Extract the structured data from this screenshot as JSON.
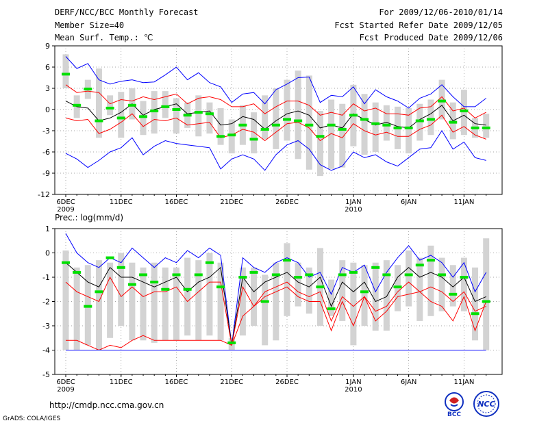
{
  "header": {
    "title": "DERF/NCC/BCC Monthly Forecast",
    "member_size": "Member Size=40",
    "variable": "Mean Surf. Temp.: ℃",
    "period": "For 2009/12/06-2010/01/14",
    "start_date": "Fcst Started Refer Date 2009/12/05",
    "produced_date": "Fcst Produced Date 2009/12/06"
  },
  "footer": {
    "url": "http://cmdp.ncc.cma.gov.cn",
    "credit": "GrADS: COLA/IGES",
    "logo_bcc": "BCC",
    "logo_ncc": "NCC"
  },
  "colors": {
    "box": "#d3d3d3",
    "median": "#00e000",
    "ensemble_mean": "#000000",
    "range": "#0000ff",
    "spread": "#ff0000",
    "grid": "#888888"
  },
  "chart_data": [
    {
      "type": "line",
      "title": "",
      "ylabel": "Mean Surf. Temp.: ℃",
      "ylim": [
        -12,
        9
      ],
      "yticks": [
        9,
        6,
        3,
        0,
        -3,
        -6,
        -9,
        -12
      ],
      "grid": true,
      "x_tick_labels": [
        {
          "day": 0,
          "label": "6DEC",
          "sub": "2009"
        },
        {
          "day": 5,
          "label": "11DEC",
          "sub": ""
        },
        {
          "day": 10,
          "label": "16DEC",
          "sub": ""
        },
        {
          "day": 15,
          "label": "21DEC",
          "sub": ""
        },
        {
          "day": 20,
          "label": "26DEC",
          "sub": ""
        },
        {
          "day": 26,
          "label": "1JAN",
          "sub": "2010"
        },
        {
          "day": 31,
          "label": "6JAN",
          "sub": ""
        },
        {
          "day": 36,
          "label": "11JAN",
          "sub": ""
        }
      ],
      "days": 39,
      "series": [
        {
          "name": "max",
          "values": [
            7.5,
            5.8,
            6.5,
            4.2,
            3.6,
            4.0,
            4.2,
            3.8,
            3.9,
            4.9,
            6.0,
            4.2,
            5.2,
            3.8,
            3.2,
            1.0,
            2.2,
            2.4,
            0.8,
            2.8,
            3.6,
            4.5,
            4.6,
            1.0,
            2.0,
            1.8,
            3.2,
            0.8,
            2.8,
            1.8,
            1.2,
            0.2,
            1.6,
            2.2,
            3.5,
            1.8,
            0.4,
            0.4,
            1.6
          ]
        },
        {
          "name": "p75",
          "values": [
            3.5,
            2.4,
            2.6,
            2.4,
            0.8,
            1.4,
            1.2,
            1.8,
            1.4,
            1.8,
            2.2,
            0.8,
            1.6,
            1.8,
            1.4,
            0.4,
            0.4,
            0.8,
            -0.6,
            0.4,
            1.2,
            1.2,
            0.6,
            -0.8,
            -0.4,
            -0.8,
            0.8,
            -0.2,
            0.2,
            -0.6,
            -0.6,
            -0.8,
            0.2,
            0.4,
            1.8,
            -0.2,
            0.2,
            -1.2,
            -0.4
          ]
        },
        {
          "name": "mean",
          "values": [
            1.2,
            0.4,
            0.2,
            -1.6,
            -1.2,
            -0.4,
            0.8,
            -0.8,
            0.0,
            0.4,
            0.8,
            -0.6,
            -0.4,
            -0.2,
            -2.2,
            -2.0,
            -1.0,
            -1.4,
            -2.8,
            -1.6,
            -0.6,
            -0.2,
            -0.8,
            -2.6,
            -2.2,
            -2.6,
            -0.6,
            -1.4,
            -2.2,
            -1.8,
            -2.4,
            -2.6,
            -1.4,
            -0.6,
            0.6,
            -1.6,
            -0.8,
            -2.0,
            -2.2
          ]
        },
        {
          "name": "p25",
          "values": [
            -1.2,
            -1.6,
            -1.4,
            -3.4,
            -2.8,
            -1.8,
            -0.6,
            -2.4,
            -1.4,
            -1.6,
            -1.2,
            -2.2,
            -2.0,
            -1.8,
            -4.0,
            -3.6,
            -2.8,
            -3.2,
            -4.4,
            -3.2,
            -2.0,
            -1.8,
            -2.6,
            -4.4,
            -3.4,
            -4.0,
            -2.0,
            -3.0,
            -3.6,
            -3.2,
            -3.8,
            -3.8,
            -2.8,
            -2.2,
            -0.8,
            -3.2,
            -2.4,
            -3.6,
            -4.2
          ]
        },
        {
          "name": "min",
          "values": [
            -6.2,
            -7.0,
            -8.2,
            -7.2,
            -6.0,
            -5.4,
            -4.0,
            -6.4,
            -5.2,
            -4.4,
            -4.8,
            -5.0,
            -5.2,
            -5.4,
            -8.4,
            -7.0,
            -6.4,
            -7.0,
            -8.6,
            -6.4,
            -5.0,
            -4.4,
            -5.6,
            -7.8,
            -8.6,
            -8.0,
            -6.0,
            -6.8,
            -6.4,
            -7.4,
            -8.0,
            -6.8,
            -5.6,
            -5.4,
            -3.0,
            -5.6,
            -4.6,
            -6.8,
            -7.2
          ]
        },
        {
          "name": "median",
          "values": [
            5.0,
            0.6,
            2.9,
            -1.6,
            0.2,
            -1.2,
            0.6,
            -1.0,
            -0.2,
            0.4,
            0.0,
            -0.8,
            -0.4,
            -0.6,
            -3.8,
            -3.6,
            -2.2,
            -4.2,
            -2.8,
            -2.2,
            -1.4,
            -1.6,
            -2.2,
            -3.8,
            -2.2,
            -2.8,
            -0.8,
            -1.4,
            -2.0,
            -2.2,
            -2.6,
            -2.6,
            -1.6,
            -1.4,
            1.2,
            -1.8,
            -0.2,
            -2.6,
            -2.6
          ]
        }
      ],
      "boxes_lo": [
        3.0,
        -1.2,
        1.5,
        -4.0,
        -0.8,
        -4.0,
        -1.4,
        -3.6,
        -3.4,
        -1.2,
        -3.4,
        -2.6,
        -3.8,
        -3.4,
        -5.0,
        -6.2,
        -5.0,
        -6.2,
        -4.2,
        -5.6,
        -4.4,
        -7.0,
        -8.5,
        -9.4,
        -8.4,
        -8.2,
        -5.2,
        -6.4,
        -6.0,
        -4.4,
        -5.6,
        -6.2,
        -4.4,
        -3.6,
        -1.4,
        -4.2,
        -3.6,
        -4.0,
        -4.0
      ],
      "boxes_hi": [
        7.8,
        2.0,
        4.2,
        5.8,
        2.0,
        2.5,
        3.0,
        1.2,
        2.6,
        2.6,
        1.6,
        1.0,
        2.0,
        1.0,
        0.2,
        -1.4,
        0.6,
        -0.4,
        2.0,
        3.0,
        4.2,
        5.5,
        4.8,
        -0.2,
        1.4,
        0.8,
        3.5,
        2.2,
        1.0,
        0.6,
        0.4,
        0.2,
        0.8,
        1.4,
        4.2,
        1.0,
        2.8,
        -1.2,
        -0.6
      ]
    },
    {
      "type": "line",
      "title": "Prec.: log(mm/d)",
      "ylabel": "Prec.: log(mm/d)",
      "ylim": [
        -5,
        1
      ],
      "yticks": [
        1,
        0,
        -1,
        -2,
        -3,
        -4,
        -5
      ],
      "grid": true,
      "x_tick_labels": [
        {
          "day": 0,
          "label": "6DEC",
          "sub": "2009"
        },
        {
          "day": 5,
          "label": "11DEC",
          "sub": ""
        },
        {
          "day": 10,
          "label": "16DEC",
          "sub": ""
        },
        {
          "day": 15,
          "label": "21DEC",
          "sub": ""
        },
        {
          "day": 20,
          "label": "26DEC",
          "sub": ""
        },
        {
          "day": 26,
          "label": "1JAN",
          "sub": "2010"
        },
        {
          "day": 31,
          "label": "6JAN",
          "sub": ""
        },
        {
          "day": 36,
          "label": "11JAN",
          "sub": ""
        }
      ],
      "days": 39,
      "series": [
        {
          "name": "max",
          "values": [
            0.8,
            0.0,
            -0.4,
            -0.6,
            -0.2,
            -0.4,
            0.2,
            -0.2,
            -0.6,
            -0.2,
            -0.4,
            0.1,
            -0.2,
            0.2,
            -0.1,
            -3.8,
            -0.2,
            -0.6,
            -0.8,
            -0.4,
            -0.2,
            -0.4,
            -1.0,
            -0.8,
            -1.7,
            -0.6,
            -0.8,
            -0.5,
            -1.6,
            -0.8,
            -0.2,
            0.3,
            -0.3,
            -0.1,
            -0.4,
            -1.0,
            -0.4,
            -1.6,
            -0.8
          ]
        },
        {
          "name": "mean",
          "values": [
            -0.4,
            -0.8,
            -1.2,
            -1.4,
            -0.6,
            -1.0,
            -1.0,
            -1.2,
            -1.4,
            -1.2,
            -1.0,
            -1.6,
            -1.2,
            -1.0,
            -0.6,
            -3.8,
            -1.0,
            -1.6,
            -1.2,
            -1.0,
            -0.8,
            -1.2,
            -1.4,
            -1.0,
            -2.2,
            -1.2,
            -1.6,
            -1.2,
            -2.0,
            -1.8,
            -1.0,
            -0.6,
            -1.0,
            -0.8,
            -1.0,
            -1.4,
            -1.0,
            -2.0,
            -1.8
          ]
        },
        {
          "name": "p75",
          "values": [
            -1.2,
            -1.6,
            -1.8,
            -2.0,
            -1.0,
            -1.8,
            -1.4,
            -1.8,
            -1.6,
            -1.6,
            -1.4,
            -2.0,
            -1.6,
            -1.2,
            -1.2,
            -3.8,
            -1.4,
            -2.2,
            -1.6,
            -1.4,
            -1.2,
            -1.6,
            -1.8,
            -1.6,
            -2.8,
            -1.8,
            -2.2,
            -1.8,
            -2.4,
            -2.2,
            -1.6,
            -1.2,
            -1.6,
            -1.4,
            -1.6,
            -2.0,
            -1.6,
            -2.4,
            -2.2
          ]
        },
        {
          "name": "p25",
          "values": [
            -3.6,
            -3.6,
            -3.8,
            -4.0,
            -3.8,
            -3.9,
            -3.6,
            -3.4,
            -3.6,
            -3.6,
            -3.6,
            -3.6,
            -3.6,
            -3.6,
            -3.6,
            -3.8,
            -2.6,
            -2.2,
            -1.8,
            -1.6,
            -1.4,
            -1.8,
            -2.0,
            -2.0,
            -3.2,
            -2.0,
            -3.0,
            -1.8,
            -2.8,
            -2.4,
            -1.8,
            -1.7,
            -1.6,
            -2.0,
            -2.2,
            -2.8,
            -1.8,
            -3.2,
            -2.0
          ]
        },
        {
          "name": "min",
          "values": [
            -4.0,
            -4.0,
            -4.0,
            -4.0,
            -4.0,
            -4.0,
            -4.0,
            -4.0,
            -4.0,
            -4.0,
            -4.0,
            -4.0,
            -4.0,
            -4.0,
            -4.0,
            -4.0,
            -4.0,
            -4.0,
            -4.0,
            -4.0,
            -4.0,
            -4.0,
            -4.0,
            -4.0,
            -4.0,
            -4.0,
            -4.0,
            -4.0,
            -4.0,
            -4.0,
            -4.0,
            -4.0,
            -4.0,
            -4.0,
            -4.0,
            -4.0,
            -4.0,
            -4.0,
            -4.0
          ]
        },
        {
          "name": "median",
          "values": [
            -0.4,
            -0.8,
            -2.2,
            -1.6,
            -0.2,
            -0.6,
            -1.3,
            -0.9,
            -1.2,
            -1.5,
            -0.9,
            -1.5,
            -0.9,
            -0.4,
            -1.4,
            -3.7,
            -1.0,
            -0.8,
            -2.0,
            -0.9,
            -0.3,
            -1.0,
            -0.9,
            -1.4,
            -2.3,
            -0.9,
            -0.8,
            -1.6,
            -0.6,
            -0.9,
            -1.4,
            -0.9,
            -0.5,
            -0.3,
            -0.9,
            -1.7,
            -1.0,
            -2.5,
            -2.0
          ]
        }
      ],
      "boxes_lo": [
        -4.0,
        -4.0,
        -3.8,
        -4.0,
        -3.5,
        -3.0,
        -3.6,
        -3.6,
        -3.7,
        -3.6,
        -3.6,
        -3.4,
        -3.6,
        -3.4,
        -3.6,
        -4.0,
        -3.4,
        -3.0,
        -3.8,
        -3.6,
        -2.6,
        -2.2,
        -2.5,
        -3.0,
        -2.6,
        -2.8,
        -3.8,
        -3.0,
        -3.2,
        -3.2,
        -2.4,
        -2.2,
        -2.8,
        -2.6,
        -2.4,
        -2.2,
        -2.4,
        -3.6,
        -4.0
      ],
      "boxes_hi": [
        0.1,
        -0.6,
        -0.5,
        -0.3,
        -0.4,
        0.0,
        -0.4,
        -0.6,
        -0.4,
        -0.6,
        -0.6,
        -0.2,
        -0.3,
        0.0,
        -0.4,
        -3.5,
        -0.6,
        -0.6,
        -0.9,
        -0.4,
        0.4,
        -0.4,
        -0.6,
        0.2,
        -1.1,
        -0.3,
        -0.4,
        -0.5,
        -0.4,
        -0.3,
        -0.5,
        0.1,
        -0.2,
        0.3,
        -0.2,
        -0.5,
        -0.2,
        -0.6,
        0.6
      ]
    }
  ]
}
